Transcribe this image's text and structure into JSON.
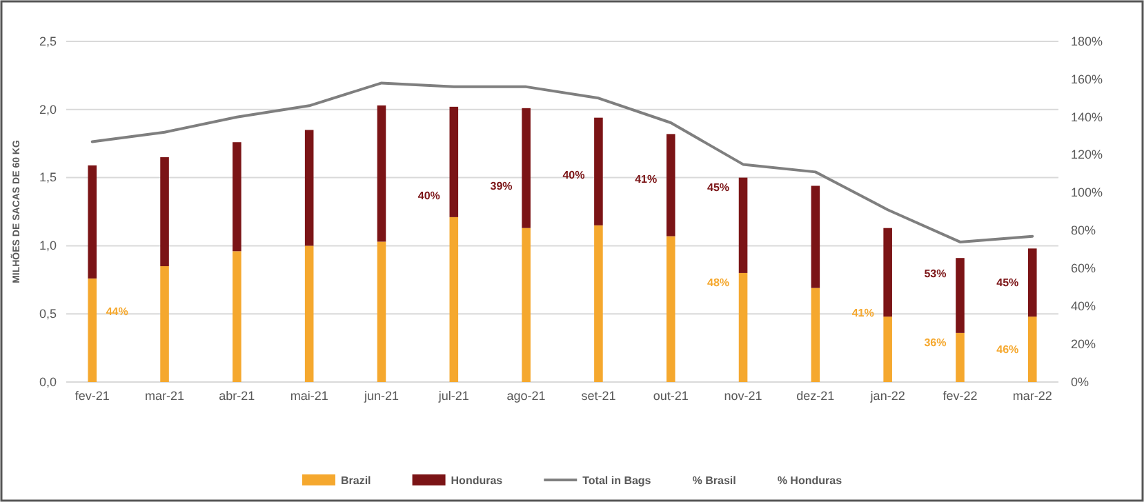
{
  "chart_data": {
    "type": "bar",
    "stacked": true,
    "categories": [
      "fev-21",
      "mar-21",
      "abr-21",
      "mai-21",
      "jun-21",
      "jul-21",
      "ago-21",
      "set-21",
      "out-21",
      "nov-21",
      "dez-21",
      "jan-22",
      "fev-22",
      "mar-22"
    ],
    "ylabel": "MILHÕES DE SACAS DE 60 KG",
    "series": [
      {
        "name": "Brazil",
        "color": "#f5a82e",
        "values": [
          0.76,
          0.85,
          0.96,
          1.0,
          1.03,
          1.21,
          1.13,
          1.15,
          1.07,
          0.8,
          0.69,
          0.48,
          0.36,
          0.48
        ]
      },
      {
        "name": "Honduras",
        "color": "#7b1416",
        "values": [
          0.83,
          0.8,
          0.8,
          0.85,
          1.0,
          0.81,
          0.88,
          0.79,
          0.75,
          0.7,
          0.75,
          0.65,
          0.55,
          0.5
        ]
      },
      {
        "name": "Total in Bags",
        "type": "line",
        "axis": "y2",
        "color": "#7f7f7f",
        "marker": "none",
        "values": [
          127,
          132,
          140,
          146,
          158,
          156,
          156,
          150,
          137,
          115,
          111,
          91,
          74,
          77
        ]
      }
    ],
    "annotations": [
      "% Brasil",
      "% Honduras",
      {
        "text": "44%",
        "x": "fev-21",
        "y": 0.52
      },
      {
        "text": "48%",
        "x": "nov-21",
        "y": 0.73
      },
      {
        "text": "41%",
        "x": "jan-22",
        "y": 0.51
      },
      {
        "text": "36%",
        "x": "fev-22",
        "y": 0.29
      },
      {
        "text": "46%",
        "x": "mar-22",
        "y": 0.24
      },
      {
        "text": "40%",
        "x": "jul-21",
        "y": 1.37
      },
      {
        "text": "39%",
        "x": "ago-21",
        "y": 1.44
      },
      {
        "text": "40%",
        "x": "set-21",
        "y": 1.52
      },
      {
        "text": "41%",
        "x": "out-21",
        "y": 1.49
      },
      {
        "text": "45%",
        "x": "nov-21",
        "y": 1.43
      },
      {
        "text": "53%",
        "x": "fev-22",
        "y": 0.8
      },
      {
        "text": "45%",
        "x": "mar-22",
        "y": 0.73
      }
    ],
    "ylim": [
      0,
      2.5
    ],
    "yticks": [
      {
        "value": 0,
        "label": "0,0"
      },
      {
        "value": 0.5,
        "label": "0,5"
      },
      {
        "value": 1,
        "label": "1,0"
      },
      {
        "value": 1.5,
        "label": "1,5"
      },
      {
        "value": 2,
        "label": "2,0"
      },
      {
        "value": 2.5,
        "label": "2,5"
      }
    ],
    "y2lim": [
      0,
      180
    ],
    "y2ticks": [
      {
        "value": 0,
        "label": "0%"
      },
      {
        "value": 20,
        "label": "20%"
      },
      {
        "value": 40,
        "label": "40%"
      },
      {
        "value": 60,
        "label": "60%"
      },
      {
        "value": 80,
        "label": "80%"
      },
      {
        "value": 100,
        "label": "100%"
      },
      {
        "value": 120,
        "label": "120%"
      },
      {
        "value": 140,
        "label": "140%"
      },
      {
        "value": 160,
        "label": "160%"
      },
      {
        "value": 180,
        "label": "180%"
      }
    ],
    "grid": "y",
    "legend": "bottom",
    "line_style": "solid"
  }
}
